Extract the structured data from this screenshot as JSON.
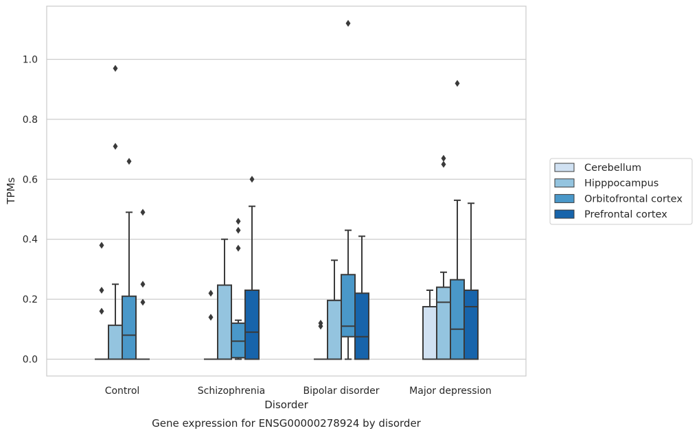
{
  "chart_data": {
    "type": "box",
    "title": "",
    "caption": "Gene expression for ENSG00000278924 by disorder",
    "xlabel": "Disorder",
    "ylabel": "TPMs",
    "ylim": [
      -0.055,
      1.18
    ],
    "yticks": [
      0.0,
      0.2,
      0.4,
      0.6,
      0.8,
      1.0
    ],
    "ytick_labels": [
      "0.0",
      "0.2",
      "0.4",
      "0.6",
      "0.8",
      "1.0"
    ],
    "grid": "horizontal",
    "legend_position": "right",
    "categories": [
      "Control",
      "Schizophrenia",
      "Bipolar disorder",
      "Major depression"
    ],
    "series": [
      {
        "name": "Cerebellum",
        "color": "#d0e1f2",
        "boxes": [
          {
            "q1": 0,
            "median": 0,
            "q3": 0,
            "whisker_low": 0,
            "whisker_high": 0,
            "outliers": [
              0.16,
              0.23,
              0.38
            ]
          },
          {
            "q1": 0,
            "median": 0,
            "q3": 0,
            "whisker_low": 0,
            "whisker_high": 0,
            "outliers": [
              0.14,
              0.22
            ]
          },
          {
            "q1": 0,
            "median": 0,
            "q3": 0,
            "whisker_low": 0,
            "whisker_high": 0,
            "outliers": [
              0.11,
              0.12
            ]
          },
          {
            "q1": 0,
            "median": 0,
            "q3": 0.175,
            "whisker_low": 0,
            "whisker_high": 0.23,
            "outliers": []
          }
        ]
      },
      {
        "name": "Hipppocampus",
        "color": "#94c4df",
        "boxes": [
          {
            "q1": 0,
            "median": 0,
            "q3": 0.113,
            "whisker_low": 0,
            "whisker_high": 0.25,
            "outliers": [
              0.71,
              0.97
            ]
          },
          {
            "q1": 0,
            "median": 0,
            "q3": 0.247,
            "whisker_low": 0,
            "whisker_high": 0.4,
            "outliers": []
          },
          {
            "q1": 0,
            "median": 0,
            "q3": 0.196,
            "whisker_low": 0,
            "whisker_high": 0.33,
            "outliers": []
          },
          {
            "q1": 0,
            "median": 0.19,
            "q3": 0.24,
            "whisker_low": 0,
            "whisker_high": 0.29,
            "outliers": [
              0.65,
              0.67
            ]
          }
        ]
      },
      {
        "name": "Orbitofrontal cortex",
        "color": "#4a98c9",
        "boxes": [
          {
            "q1": 0,
            "median": 0.08,
            "q3": 0.21,
            "whisker_low": 0,
            "whisker_high": 0.49,
            "outliers": [
              0.66
            ]
          },
          {
            "q1": 0.005,
            "median": 0.06,
            "q3": 0.12,
            "whisker_low": 0,
            "whisker_high": 0.13,
            "outliers": [
              0.37,
              0.43,
              0.46
            ]
          },
          {
            "q1": 0.075,
            "median": 0.11,
            "q3": 0.282,
            "whisker_low": 0,
            "whisker_high": 0.43,
            "outliers": [
              1.12
            ]
          },
          {
            "q1": 0,
            "median": 0.1,
            "q3": 0.265,
            "whisker_low": 0,
            "whisker_high": 0.53,
            "outliers": [
              0.92
            ]
          }
        ]
      },
      {
        "name": "Prefrontal cortex",
        "color": "#1764ab",
        "boxes": [
          {
            "q1": 0,
            "median": 0,
            "q3": 0,
            "whisker_low": 0,
            "whisker_high": 0,
            "outliers": [
              0.19,
              0.25,
              0.49
            ]
          },
          {
            "q1": 0,
            "median": 0.09,
            "q3": 0.23,
            "whisker_low": 0,
            "whisker_high": 0.51,
            "outliers": [
              0.6
            ]
          },
          {
            "q1": 0,
            "median": 0.075,
            "q3": 0.22,
            "whisker_low": 0,
            "whisker_high": 0.41,
            "outliers": []
          },
          {
            "q1": 0,
            "median": 0.175,
            "q3": 0.23,
            "whisker_low": 0,
            "whisker_high": 0.52,
            "outliers": []
          }
        ]
      }
    ]
  }
}
